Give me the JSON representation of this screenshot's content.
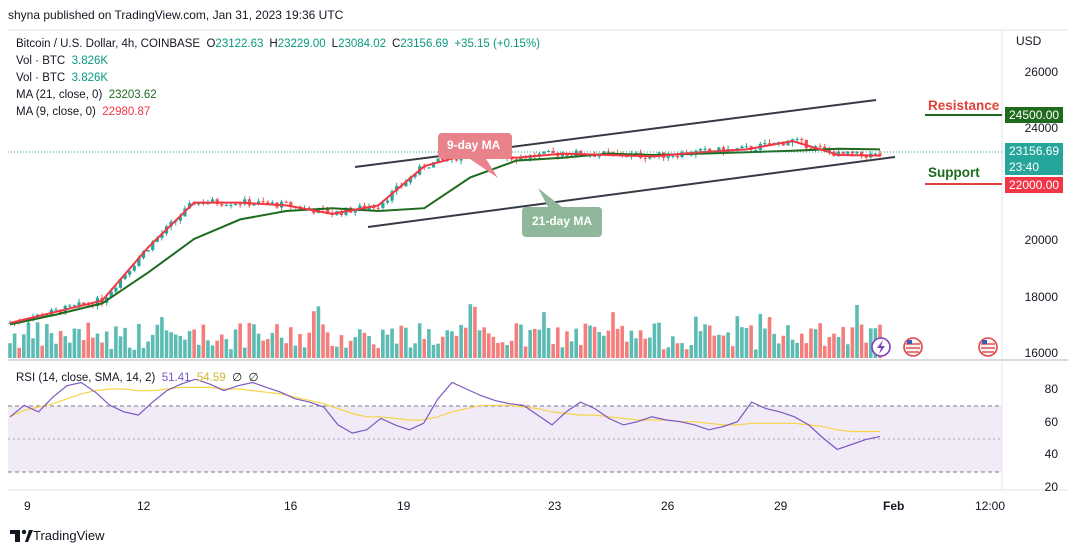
{
  "publisher_line": "shyna published on TradingView.com, Jan 31, 2023 19:36 UTC",
  "legend": {
    "symbol": "Bitcoin / U.S. Dollar, 4h, COINBASE",
    "o_label": "O",
    "o": "23122.63",
    "h_label": "H",
    "h": "23229.00",
    "l_label": "L",
    "l": "23084.02",
    "c_label": "C",
    "c": "23156.69",
    "change": "+35.15 (+0.15%)",
    "vol1_label": "Vol · BTC",
    "vol1": "3.826K",
    "vol2_label": "Vol · BTC",
    "vol2": "3.826K",
    "ma21_label": "MA (21, close, 0)",
    "ma21": "23203.62",
    "ma9_label": "MA (9, close, 0)",
    "ma9": "22980.87"
  },
  "currency": "USD",
  "annotations": {
    "resistance": "Resistance",
    "support": "Support",
    "ma9_callout": "9-day MA",
    "ma21_callout": "21-day MA"
  },
  "badges": {
    "resistance_price": "24500.00",
    "current_price": "23156.69",
    "countdown": "23:40",
    "support_price": "22000.00"
  },
  "rsi_legend": {
    "label": "RSI (14, close, SMA, 14, 2)",
    "value": "51.41",
    "sma": "54.59",
    "empty1": "∅",
    "empty2": "∅"
  },
  "footer": {
    "brand": "TradingView"
  },
  "colors": {
    "up": "#26a69a",
    "down": "#ef5350",
    "ma9": "#f23645",
    "ma21": "#1e6b1e",
    "rsi": "#7e57c2",
    "rsi_sma": "#f7d34a"
  },
  "chart_data": [
    {
      "type": "candlestick",
      "title": "Bitcoin / U.S. Dollar, 4h, COINBASE",
      "x_ticks": [
        "9",
        "12",
        "16",
        "19",
        "23",
        "26",
        "29",
        "Feb",
        "12:00"
      ],
      "y_ticks": [
        16000,
        18000,
        20000,
        22000,
        24000,
        26000
      ],
      "ylim": [
        15800,
        27000
      ],
      "series": [
        {
          "name": "MA (21, close, 0)",
          "points": [
            [
              0,
              16950
            ],
            [
              10,
              17300
            ],
            [
              20,
              17700
            ],
            [
              30,
              18800
            ],
            [
              40,
              20000
            ],
            [
              50,
              20700
            ],
            [
              60,
              21000
            ],
            [
              70,
              21100
            ],
            [
              80,
              21000
            ],
            [
              90,
              21100
            ],
            [
              100,
              22200
            ],
            [
              110,
              22800
            ],
            [
              120,
              22900
            ],
            [
              130,
              23050
            ],
            [
              140,
              23000
            ],
            [
              150,
              23050
            ],
            [
              160,
              23100
            ],
            [
              170,
              23150
            ],
            [
              180,
              23220
            ],
            [
              189,
              23200
            ]
          ]
        },
        {
          "name": "MA (9, close, 0)",
          "points": [
            [
              0,
              17000
            ],
            [
              10,
              17400
            ],
            [
              20,
              17800
            ],
            [
              30,
              19700
            ],
            [
              40,
              21300
            ],
            [
              50,
              21300
            ],
            [
              60,
              21200
            ],
            [
              70,
              20900
            ],
            [
              80,
              21200
            ],
            [
              90,
              22600
            ],
            [
              100,
              23050
            ],
            [
              110,
              22900
            ],
            [
              120,
              23050
            ],
            [
              130,
              23000
            ],
            [
              140,
              22950
            ],
            [
              150,
              23100
            ],
            [
              160,
              23200
            ],
            [
              170,
              23500
            ],
            [
              180,
              23000
            ],
            [
              189,
              22980
            ]
          ]
        }
      ],
      "annotations": {
        "resistance": 24500,
        "support": 22000,
        "last_price": 23156.69
      }
    },
    {
      "type": "line",
      "title": "RSI (14, close, SMA, 14, 2)",
      "y_ticks": [
        20,
        40,
        60,
        80
      ],
      "ylim": [
        14,
        94
      ],
      "bands": [
        30,
        50,
        70
      ],
      "series": [
        {
          "name": "RSI",
          "values": [
            63,
            70,
            66,
            75,
            82,
            84,
            78,
            70,
            66,
            64,
            72,
            79,
            83,
            86,
            83,
            79,
            82,
            84,
            81,
            78,
            74,
            72,
            69,
            58,
            53,
            55,
            62,
            58,
            55,
            59,
            74,
            84,
            80,
            76,
            73,
            71,
            70,
            64,
            58,
            66,
            72,
            68,
            62,
            58,
            60,
            63,
            61,
            60,
            58,
            55,
            57,
            60,
            72,
            68,
            66,
            63,
            58,
            50,
            43,
            46,
            49,
            51
          ]
        },
        {
          "name": "SMA",
          "values": [
            63,
            67,
            69,
            71,
            74,
            77,
            79,
            80,
            80,
            79,
            79,
            80,
            81,
            81,
            81,
            80,
            80,
            79,
            78,
            77,
            75,
            73,
            71,
            68,
            65,
            63,
            63,
            62,
            61,
            61,
            63,
            66,
            68,
            70,
            70,
            70,
            69,
            68,
            66,
            65,
            64,
            64,
            63,
            62,
            61,
            61,
            61,
            60,
            60,
            59,
            58,
            58,
            59,
            59,
            59,
            59,
            58,
            57,
            55,
            54,
            54,
            54
          ]
        }
      ]
    }
  ]
}
